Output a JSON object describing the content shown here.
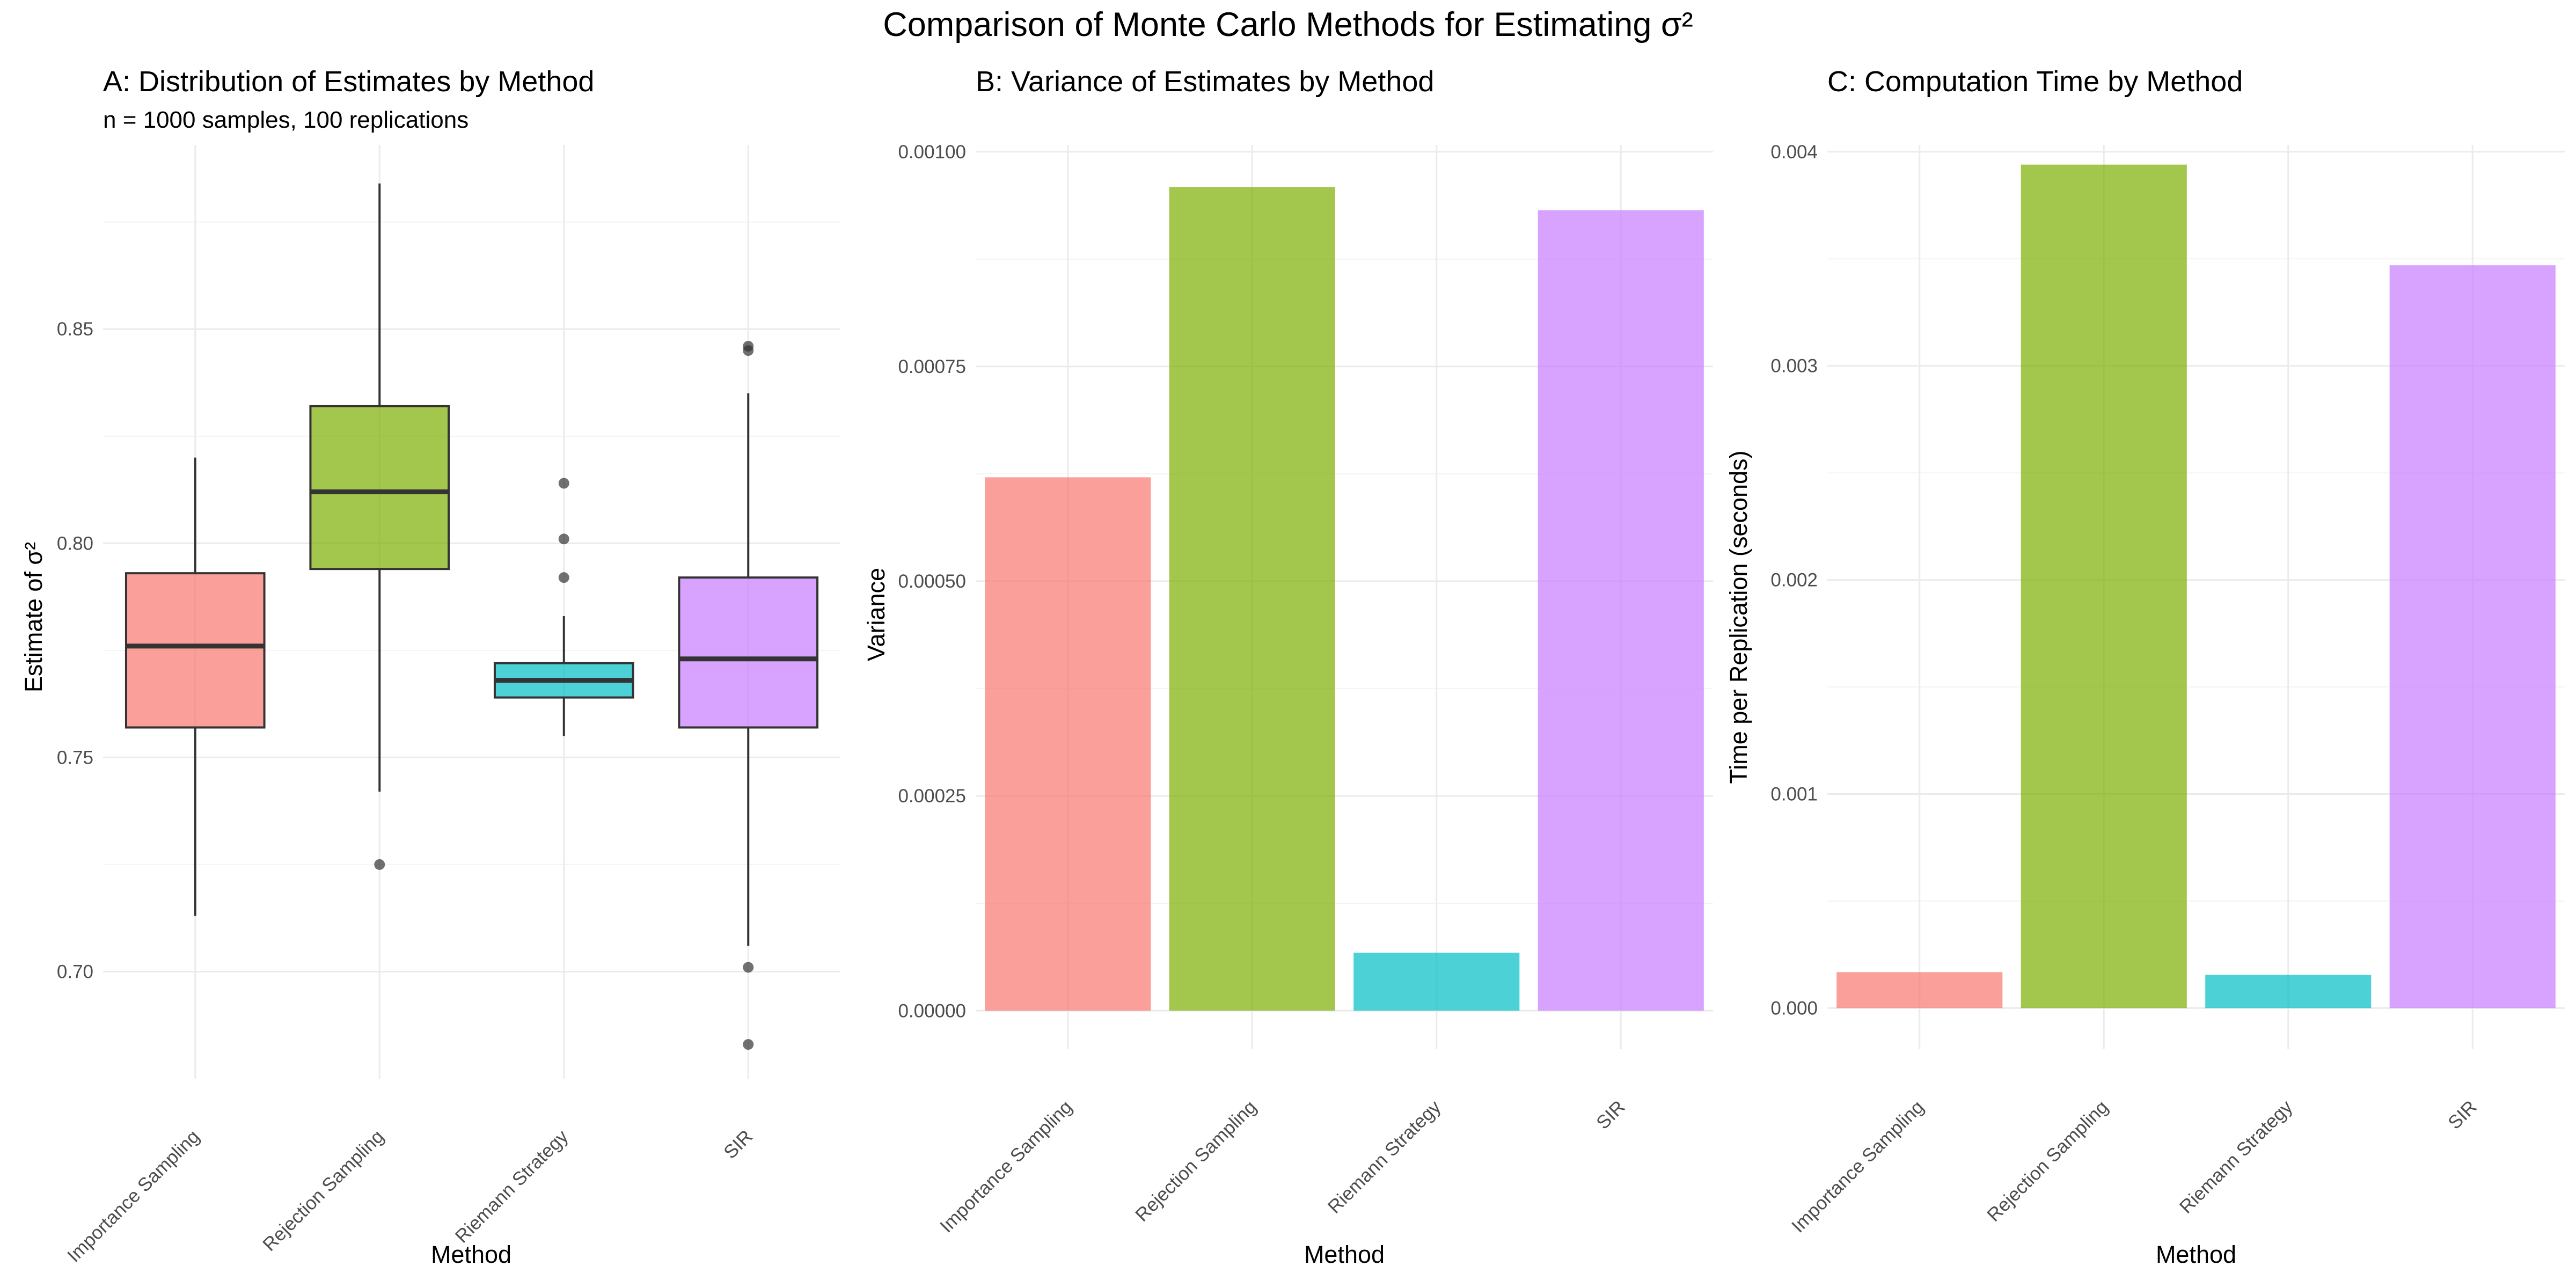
{
  "figure": {
    "title": "Comparison of Monte Carlo Methods for Estimating σ²"
  },
  "colors": {
    "Importance Sampling": "#f8766d",
    "Rejection Sampling": "#7cae00",
    "Riemann Strategy": "#00bfc4",
    "SIR": "#c77cff"
  },
  "chart_data": [
    {
      "type": "box",
      "title": "A: Distribution of Estimates by Method",
      "subtitle": "n = 1000 samples, 100 replications",
      "xlabel": "Method",
      "ylabel": "Estimate of σ²",
      "ylim": [
        0.675,
        0.893
      ],
      "y_ticks": [
        0.7,
        0.75,
        0.8,
        0.85
      ],
      "y_tick_labels": [
        "0.70",
        "0.75",
        "0.80",
        "0.85"
      ],
      "grid": true,
      "legend": "none",
      "categories": [
        "Importance Sampling",
        "Rejection Sampling",
        "Riemann Strategy",
        "SIR"
      ],
      "boxes": [
        {
          "min": 0.713,
          "q1": 0.757,
          "median": 0.776,
          "q3": 0.793,
          "max": 0.82,
          "outliers": []
        },
        {
          "min": 0.742,
          "q1": 0.794,
          "median": 0.812,
          "q3": 0.832,
          "max": 0.884,
          "outliers": [
            0.725
          ]
        },
        {
          "min": 0.755,
          "q1": 0.764,
          "median": 0.768,
          "q3": 0.772,
          "max": 0.783,
          "outliers": [
            0.814,
            0.801,
            0.792
          ]
        },
        {
          "min": 0.706,
          "q1": 0.757,
          "median": 0.773,
          "q3": 0.792,
          "max": 0.835,
          "outliers": [
            0.846,
            0.845,
            0.701,
            0.683
          ]
        }
      ]
    },
    {
      "type": "bar",
      "title": "B: Variance of Estimates by Method",
      "xlabel": "Method",
      "ylabel": "Variance",
      "ylim": [
        -4.48e-05,
        0.001008
      ],
      "y_ticks": [
        0,
        0.00025,
        0.0005,
        0.00075,
        0.001
      ],
      "y_tick_labels": [
        "0.00000",
        "0.00025",
        "0.00050",
        "0.00075",
        "0.00100"
      ],
      "grid": true,
      "legend": "none",
      "categories": [
        "Importance Sampling",
        "Rejection Sampling",
        "Riemann Strategy",
        "SIR"
      ],
      "values": [
        0.000621,
        0.000959,
        6.75e-05,
        0.000932
      ]
    },
    {
      "type": "bar",
      "title": "C: Computation Time by Method",
      "xlabel": "Method",
      "ylabel": "Time per Replication (seconds)",
      "ylim": [
        -0.000192,
        0.004032
      ],
      "y_ticks": [
        0,
        0.001,
        0.002,
        0.003,
        0.004
      ],
      "y_tick_labels": [
        "0.000",
        "0.001",
        "0.002",
        "0.003",
        "0.004"
      ],
      "grid": true,
      "legend": "none",
      "categories": [
        "Importance Sampling",
        "Rejection Sampling",
        "Riemann Strategy",
        "SIR"
      ],
      "values": [
        0.000168,
        0.00394,
        0.000155,
        0.00347
      ]
    }
  ]
}
